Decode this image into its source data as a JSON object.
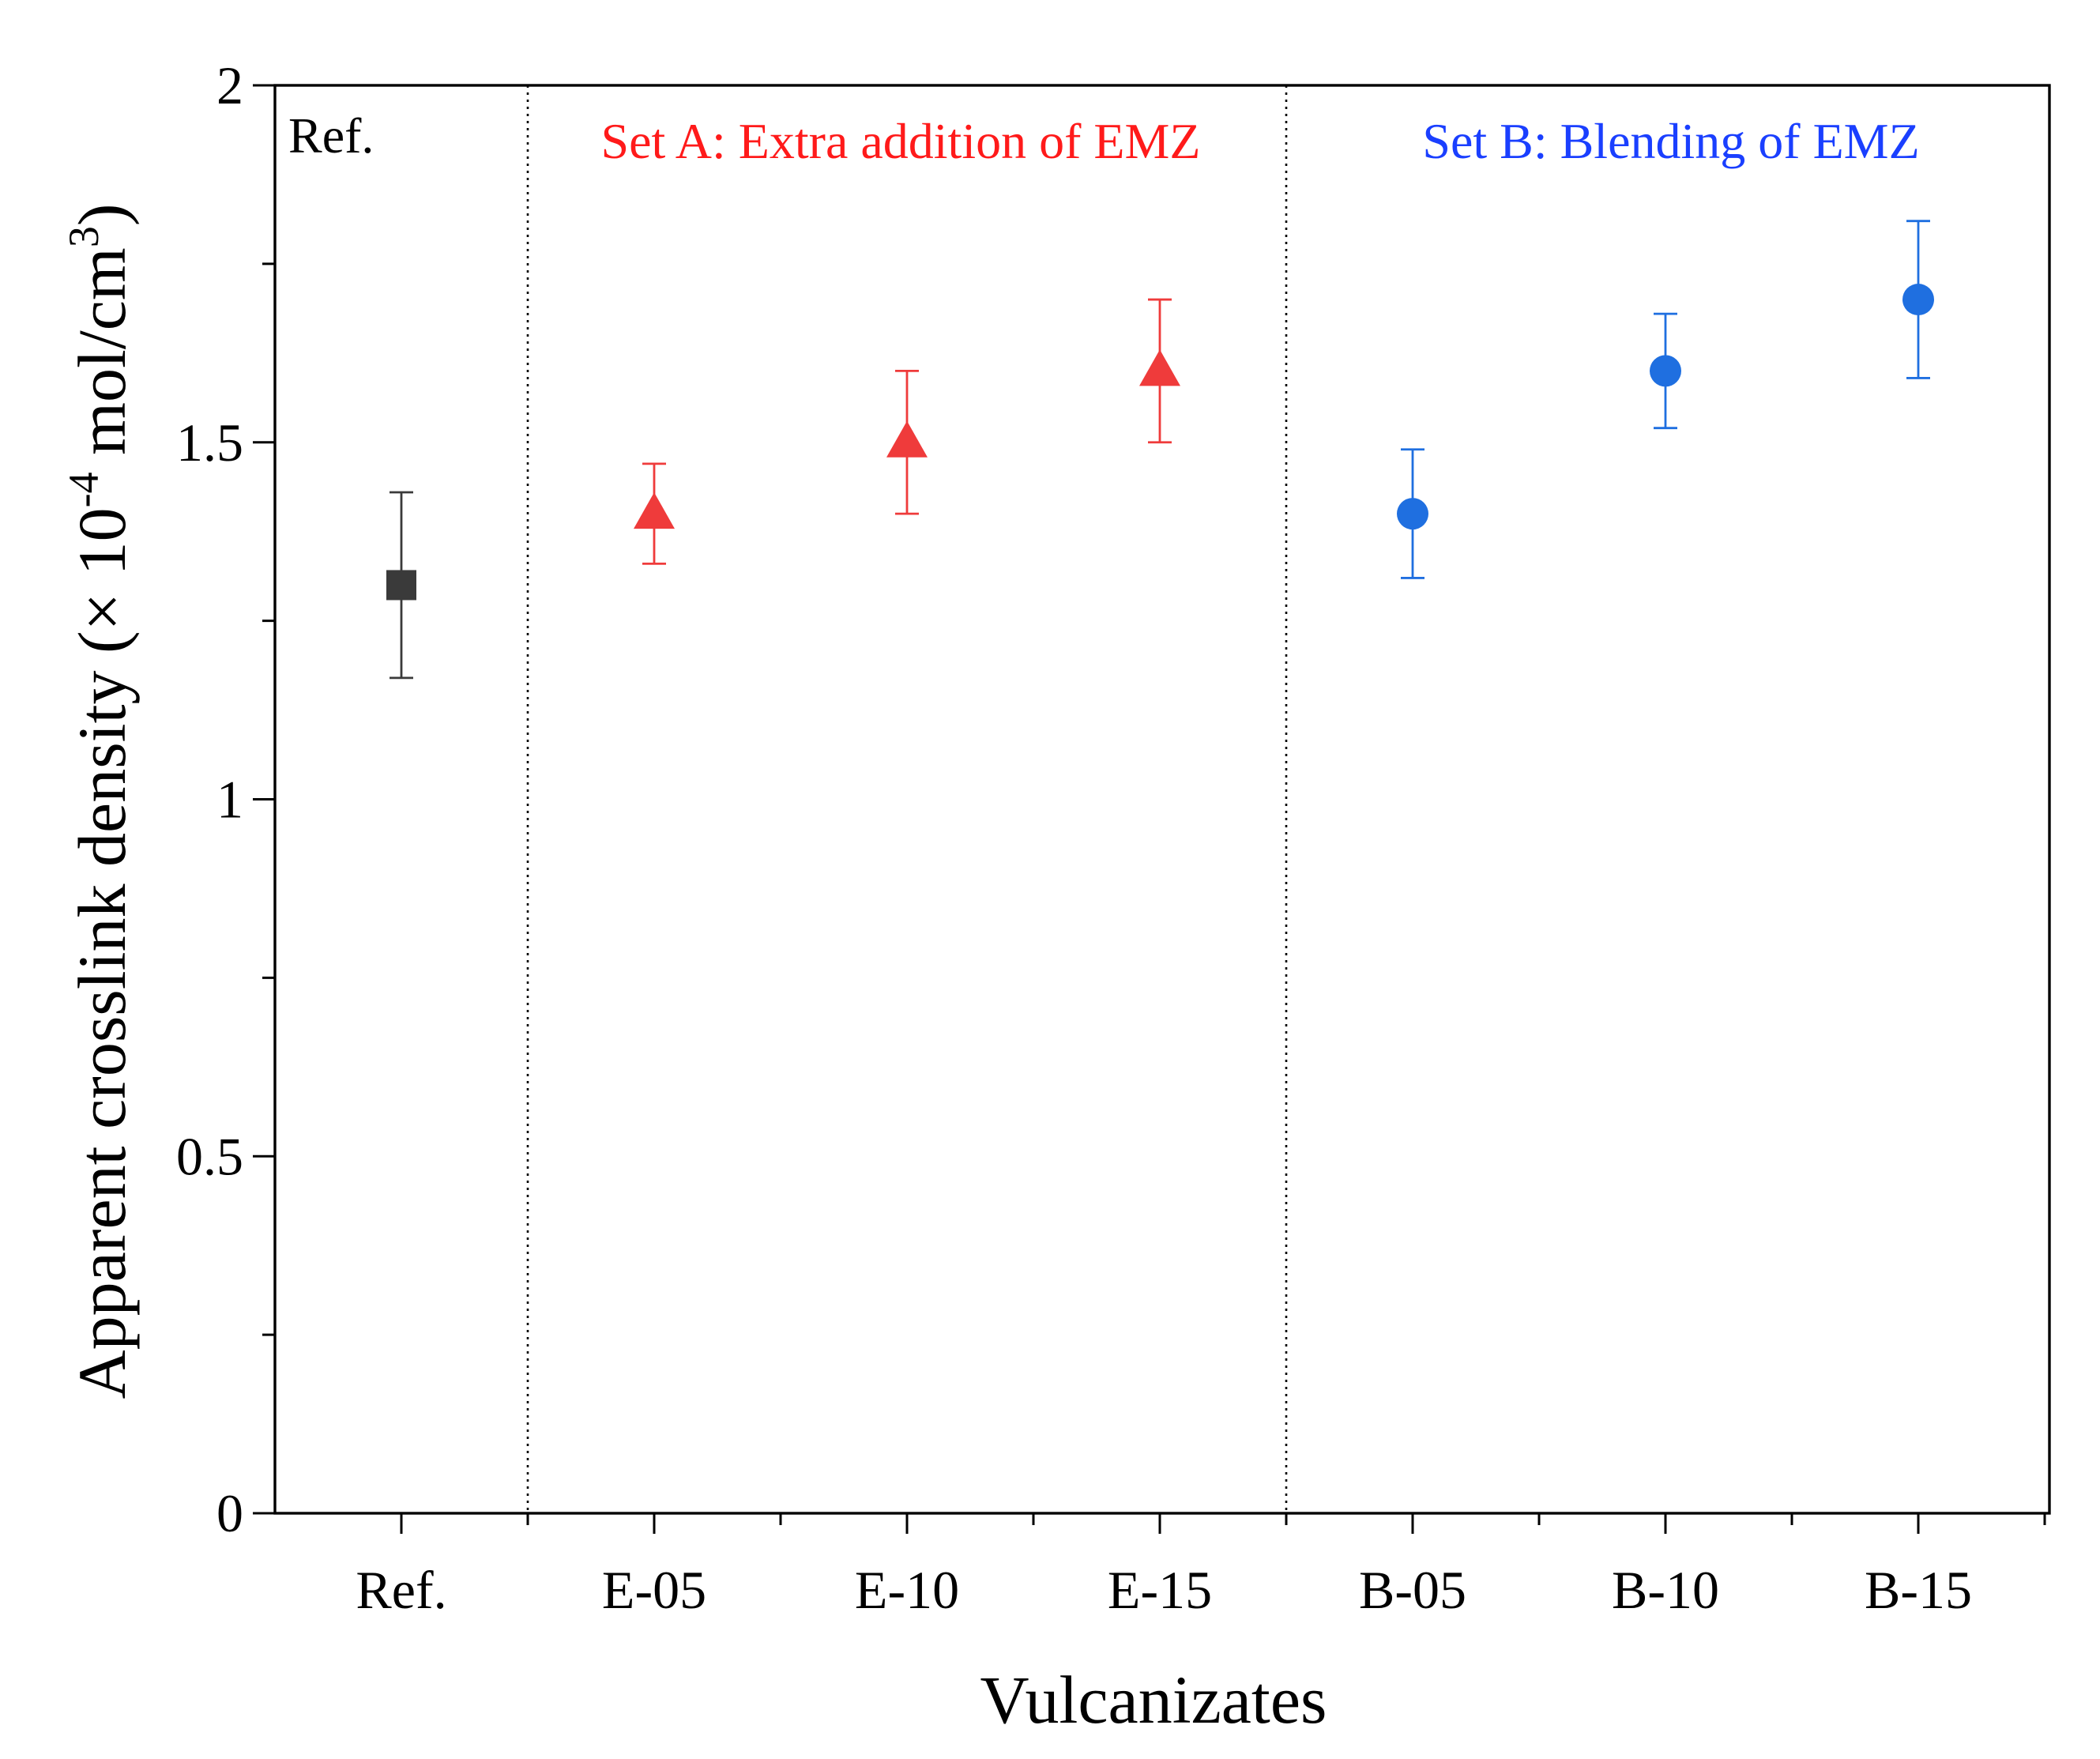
{
  "chart_data": {
    "type": "scatter",
    "title": "",
    "xlabel": "Vulcanizates",
    "ylabel": {
      "prefix": "Apparent crosslink density (× 10",
      "exponent": "-4",
      "unit": " mol/cm",
      "unit_exponent": "3",
      "suffix": ")"
    },
    "ylim": [
      0,
      2
    ],
    "yticks": [
      "0",
      "0.5",
      "1",
      "1.5",
      "2"
    ],
    "grid": false,
    "categories": [
      "Ref.",
      "E-05",
      "E-10",
      "E-15",
      "B-05",
      "B-10",
      "B-15"
    ],
    "series": [
      {
        "name": "Ref.",
        "marker": "square",
        "color": "#3a3a3a",
        "points": [
          {
            "category": "Ref.",
            "value": 1.3,
            "error": 0.13
          }
        ]
      },
      {
        "name": "Set A",
        "marker": "triangle",
        "color": "#ef3b3b",
        "points": [
          {
            "category": "E-05",
            "value": 1.4,
            "error": 0.07
          },
          {
            "category": "E-10",
            "value": 1.5,
            "error": 0.1
          },
          {
            "category": "E-15",
            "value": 1.6,
            "error": 0.1
          }
        ]
      },
      {
        "name": "Set B",
        "marker": "circle",
        "color": "#1f6fe0",
        "points": [
          {
            "category": "B-05",
            "value": 1.4,
            "error": 0.09
          },
          {
            "category": "B-10",
            "value": 1.6,
            "error": 0.08
          },
          {
            "category": "B-15",
            "value": 1.7,
            "error": 0.11
          }
        ]
      }
    ],
    "region_labels": [
      {
        "text": "Ref.",
        "color": "#000000"
      },
      {
        "text": "Set A: Extra addition of EMZ",
        "color": "#ff1a1a"
      },
      {
        "text": "Set B: Blending of EMZ",
        "color": "#1a3fff"
      }
    ]
  }
}
